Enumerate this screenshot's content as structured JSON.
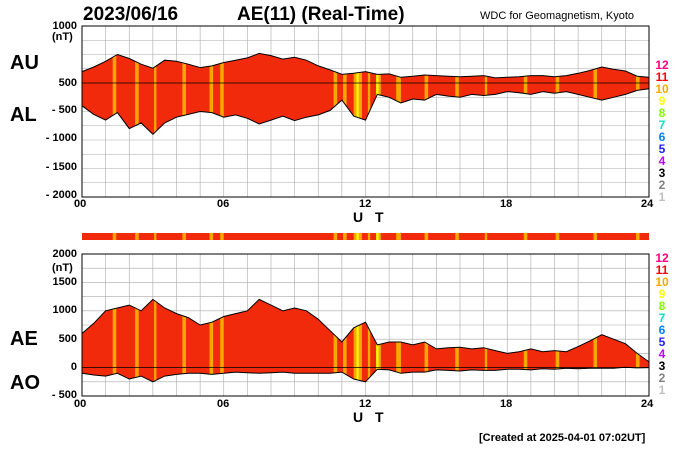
{
  "header": {
    "date": "2023/06/16",
    "title": "AE(11) (Real-Time)",
    "source": "WDC for Geomagnetism, Kyoto"
  },
  "footer": {
    "created": "[Created at 2025-04-01 07:02UT]"
  },
  "colors": {
    "background": "#ffffff",
    "grid": "#aaaaaa",
    "base_fill": "#f02a0a",
    "outline": "#000000",
    "stations_11": "#ff0000",
    "stations_10": "#f6a800",
    "stations_9": "#ffff00"
  },
  "level_scale": {
    "labels": [
      "12",
      "11",
      "10",
      "9",
      "8",
      "7",
      "6",
      "5",
      "4",
      "3",
      "2",
      "1"
    ],
    "colors": [
      "#ff0080",
      "#ff0000",
      "#f6a800",
      "#ffff00",
      "#80ff00",
      "#00e0c0",
      "#0080ff",
      "#2020ff",
      "#c000ff",
      "#000000",
      "#808080",
      "#c0c0c0"
    ]
  },
  "chart_data": [
    {
      "type": "area",
      "name": "AU / AL",
      "panel_labels": [
        "AU",
        "AL"
      ],
      "unit_label": "(nT)",
      "xlabel": "U T",
      "xlim": [
        0,
        24
      ],
      "x_ticks": [
        "00",
        "06",
        "12",
        "18",
        "24"
      ],
      "ylim": [
        -2000,
        1000
      ],
      "y_ticks": [
        1000,
        500,
        0,
        -500,
        -1000,
        -1500,
        -2000
      ],
      "y_tick_labels": [
        "1000",
        "500",
        "0",
        "- 500",
        "- 1000",
        "- 1500",
        "- 2000"
      ],
      "grid": true,
      "hours": [
        0,
        0.5,
        1,
        1.5,
        2,
        2.5,
        3,
        3.5,
        4,
        4.5,
        5,
        5.5,
        6,
        6.5,
        7,
        7.5,
        8,
        8.5,
        9,
        9.5,
        10,
        10.5,
        11,
        11.5,
        12,
        12.5,
        13,
        13.5,
        14,
        14.5,
        15,
        15.5,
        16,
        16.5,
        17,
        17.5,
        18,
        18.5,
        19,
        19.5,
        20,
        20.5,
        21,
        21.5,
        22,
        22.5,
        23,
        23.5,
        24
      ],
      "series": [
        {
          "name": "AU",
          "values": [
            200,
            280,
            380,
            500,
            430,
            330,
            260,
            400,
            380,
            330,
            270,
            300,
            360,
            400,
            440,
            520,
            480,
            420,
            450,
            400,
            300,
            230,
            150,
            170,
            200,
            150,
            160,
            100,
            120,
            140,
            130,
            120,
            110,
            120,
            130,
            90,
            100,
            110,
            130,
            130,
            110,
            130,
            170,
            220,
            280,
            240,
            210,
            120,
            100
          ]
        },
        {
          "name": "AL",
          "values": [
            -400,
            -550,
            -650,
            -520,
            -800,
            -700,
            -900,
            -700,
            -600,
            -550,
            -500,
            -520,
            -600,
            -560,
            -620,
            -720,
            -650,
            -580,
            -660,
            -600,
            -560,
            -480,
            -300,
            -580,
            -650,
            -200,
            -250,
            -350,
            -280,
            -300,
            -200,
            -230,
            -250,
            -200,
            -220,
            -200,
            -150,
            -170,
            -200,
            -150,
            -180,
            -150,
            -200,
            -250,
            -300,
            -250,
            -200,
            -130,
            -100
          ]
        }
      ]
    },
    {
      "type": "area",
      "name": "AE / AO",
      "panel_labels": [
        "AE",
        "AO"
      ],
      "unit_label": "(nT)",
      "xlabel": "U T",
      "xlim": [
        0,
        24
      ],
      "x_ticks": [
        "00",
        "06",
        "12",
        "18",
        "24"
      ],
      "ylim": [
        -500,
        2000
      ],
      "y_ticks": [
        2000,
        1500,
        1000,
        500,
        0,
        -500
      ],
      "y_tick_labels": [
        "2000",
        "1500",
        "1000",
        "500",
        "0",
        "- 500"
      ],
      "grid": true,
      "hours": [
        0,
        0.5,
        1,
        1.5,
        2,
        2.5,
        3,
        3.5,
        4,
        4.5,
        5,
        5.5,
        6,
        6.5,
        7,
        7.5,
        8,
        8.5,
        9,
        9.5,
        10,
        10.5,
        11,
        11.5,
        12,
        12.5,
        13,
        13.5,
        14,
        14.5,
        15,
        15.5,
        16,
        16.5,
        17,
        17.5,
        18,
        18.5,
        19,
        19.5,
        20,
        20.5,
        21,
        21.5,
        22,
        22.5,
        23,
        23.5,
        24
      ],
      "series": [
        {
          "name": "AE",
          "values": [
            600,
            780,
            1000,
            1050,
            1100,
            1000,
            1200,
            1050,
            950,
            880,
            750,
            800,
            900,
            950,
            1000,
            1200,
            1100,
            1000,
            1050,
            1000,
            850,
            650,
            450,
            700,
            800,
            400,
            450,
            450,
            400,
            450,
            330,
            350,
            360,
            330,
            350,
            300,
            250,
            280,
            330,
            280,
            300,
            280,
            370,
            470,
            580,
            500,
            420,
            250,
            100
          ]
        },
        {
          "name": "AO",
          "values": [
            -100,
            -130,
            -150,
            -100,
            -200,
            -150,
            -250,
            -150,
            -120,
            -100,
            -100,
            -120,
            -100,
            -80,
            -90,
            -100,
            -90,
            -80,
            -100,
            -100,
            -100,
            -100,
            -80,
            -200,
            -250,
            -30,
            -40,
            -100,
            -80,
            -80,
            -40,
            -50,
            -60,
            -40,
            -50,
            -50,
            -30,
            -30,
            -40,
            -20,
            -30,
            -10,
            -20,
            -10,
            -10,
            -10,
            5,
            -5,
            0
          ]
        }
      ]
    }
  ],
  "station_bands": [
    {
      "start": 1.3,
      "end": 1.45,
      "level": "10"
    },
    {
      "start": 2.25,
      "end": 2.4,
      "level": "10"
    },
    {
      "start": 3.05,
      "end": 3.15,
      "level": "10"
    },
    {
      "start": 4.25,
      "end": 4.4,
      "level": "10"
    },
    {
      "start": 5.4,
      "end": 5.55,
      "level": "10"
    },
    {
      "start": 5.85,
      "end": 6.0,
      "level": "10"
    },
    {
      "start": 10.65,
      "end": 10.8,
      "level": "10"
    },
    {
      "start": 11.05,
      "end": 11.2,
      "level": "10"
    },
    {
      "start": 11.5,
      "end": 11.62,
      "level": "10"
    },
    {
      "start": 11.62,
      "end": 11.72,
      "level": "9"
    },
    {
      "start": 11.72,
      "end": 11.85,
      "level": "10"
    },
    {
      "start": 12.1,
      "end": 12.2,
      "level": "10"
    },
    {
      "start": 12.45,
      "end": 12.55,
      "level": "9"
    },
    {
      "start": 12.55,
      "end": 12.65,
      "level": "10"
    },
    {
      "start": 13.3,
      "end": 13.5,
      "level": "10"
    },
    {
      "start": 14.5,
      "end": 14.65,
      "level": "10"
    },
    {
      "start": 15.8,
      "end": 15.95,
      "level": "10"
    },
    {
      "start": 17.05,
      "end": 17.15,
      "level": "10"
    },
    {
      "start": 18.7,
      "end": 18.85,
      "level": "10"
    },
    {
      "start": 20.05,
      "end": 20.2,
      "level": "10"
    },
    {
      "start": 21.65,
      "end": 21.8,
      "level": "10"
    },
    {
      "start": 23.45,
      "end": 23.6,
      "level": "10"
    }
  ]
}
